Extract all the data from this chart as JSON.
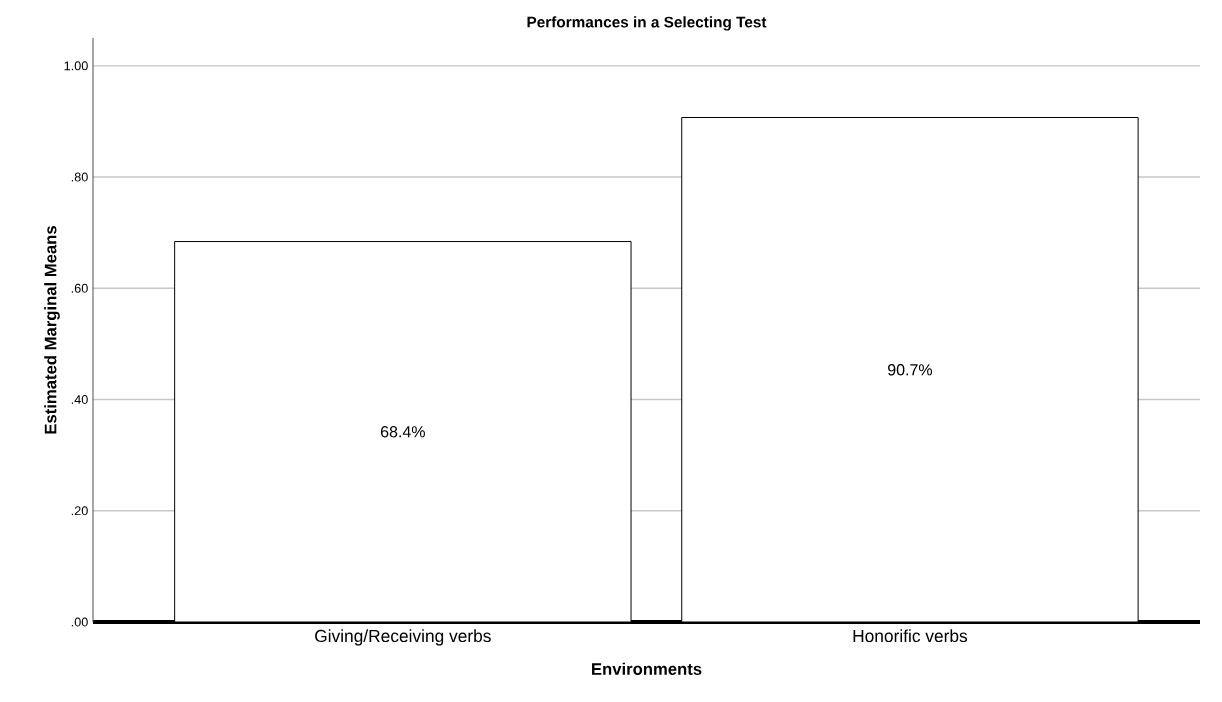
{
  "chart_data": {
    "type": "bar",
    "title": "Performances in a Selecting Test",
    "xlabel": "Environments",
    "ylabel": "Estimated Marginal Means",
    "categories": [
      "Giving/Receiving verbs",
      "Honorific verbs"
    ],
    "values": [
      0.684,
      0.907
    ],
    "value_labels": [
      "68.4%",
      "90.7%"
    ],
    "color": "#ffffff",
    "ylim": [
      0,
      1.05
    ],
    "yticks": [
      {
        "value": 0,
        "label": ".00"
      },
      {
        "value": 0.2,
        "label": ".20"
      },
      {
        "value": 0.4,
        "label": ".40"
      },
      {
        "value": 0.6,
        "label": ".60"
      },
      {
        "value": 0.8,
        "label": ".80"
      },
      {
        "value": 1.0,
        "label": "1.00"
      }
    ],
    "grid": "y"
  }
}
